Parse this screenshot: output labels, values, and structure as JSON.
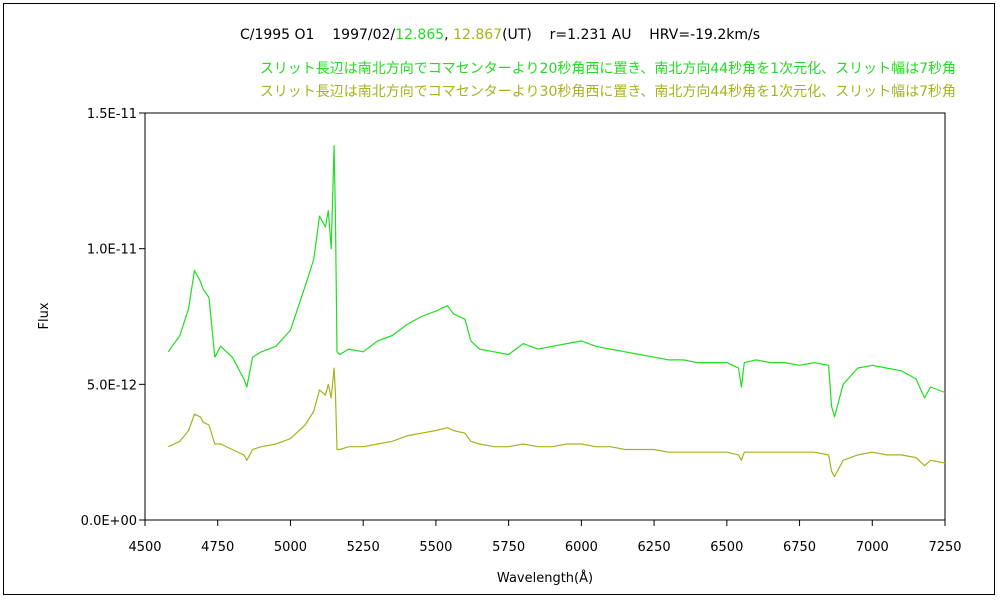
{
  "title": {
    "object": "C/1995 O1",
    "date_prefix": "1997/02/",
    "time1": "12.865",
    "sep": ", ",
    "time2": "12.867",
    "ut": "(UT)",
    "r": "r=1.231 AU",
    "hrv": "HRV=-19.2km/s"
  },
  "chart_data": {
    "type": "line",
    "xlabel": "Wavelength(Å)",
    "ylabel": "Flux",
    "xlim": [
      4500,
      7250
    ],
    "ylim": [
      0,
      1.5e-11
    ],
    "xticks": [
      4500,
      4750,
      5000,
      5250,
      5500,
      5750,
      6000,
      6250,
      6500,
      6750,
      7000,
      7250
    ],
    "yticks": [
      0,
      5e-12,
      1e-11,
      1.5e-11
    ],
    "ytick_labels": [
      "0.0E+00",
      "5.0E-12",
      "1.0E-11",
      "1.5E-11"
    ],
    "grid": false,
    "series": [
      {
        "name": "スリット長辺は南北方向でコマセンターより20秒角西に置き、南北方向44秒角を1次元化、スリット幅は7秒角",
        "color": "#22dd22",
        "x": [
          4580,
          4620,
          4650,
          4670,
          4690,
          4700,
          4720,
          4740,
          4760,
          4800,
          4840,
          4850,
          4870,
          4900,
          4950,
          5000,
          5050,
          5080,
          5100,
          5120,
          5130,
          5140,
          5150,
          5155,
          5160,
          5170,
          5200,
          5250,
          5300,
          5350,
          5400,
          5450,
          5500,
          5540,
          5560,
          5600,
          5620,
          5650,
          5700,
          5750,
          5800,
          5850,
          5900,
          5950,
          6000,
          6050,
          6100,
          6150,
          6200,
          6250,
          6300,
          6350,
          6400,
          6450,
          6500,
          6540,
          6550,
          6560,
          6600,
          6650,
          6700,
          6750,
          6800,
          6850,
          6860,
          6870,
          6900,
          6950,
          7000,
          7050,
          7100,
          7150,
          7180,
          7200,
          7250
        ],
        "y": [
          6.2e-12,
          6.8e-12,
          7.8e-12,
          9.2e-12,
          8.8e-12,
          8.5e-12,
          8.2e-12,
          6e-12,
          6.4e-12,
          6e-12,
          5.2e-12,
          4.9e-12,
          6e-12,
          6.2e-12,
          6.4e-12,
          7e-12,
          8.6e-12,
          9.6e-12,
          1.12e-11,
          1.08e-11,
          1.14e-11,
          1e-11,
          1.38e-11,
          1.1e-11,
          6.2e-12,
          6.1e-12,
          6.3e-12,
          6.2e-12,
          6.6e-12,
          6.8e-12,
          7.2e-12,
          7.5e-12,
          7.7e-12,
          7.9e-12,
          7.6e-12,
          7.4e-12,
          6.6e-12,
          6.3e-12,
          6.2e-12,
          6.1e-12,
          6.5e-12,
          6.3e-12,
          6.4e-12,
          6.5e-12,
          6.6e-12,
          6.4e-12,
          6.3e-12,
          6.2e-12,
          6.1e-12,
          6e-12,
          5.9e-12,
          5.9e-12,
          5.8e-12,
          5.8e-12,
          5.8e-12,
          5.6e-12,
          4.9e-12,
          5.8e-12,
          5.9e-12,
          5.8e-12,
          5.8e-12,
          5.7e-12,
          5.8e-12,
          5.7e-12,
          4.2e-12,
          3.8e-12,
          5e-12,
          5.6e-12,
          5.7e-12,
          5.6e-12,
          5.5e-12,
          5.2e-12,
          4.5e-12,
          4.9e-12,
          4.7e-12
        ]
      },
      {
        "name": "スリット長辺は南北方向でコマセンターより30秒角西に置き、南北方向44秒角を1次元化、スリット幅は7秒角",
        "color": "#a6b31b",
        "x": [
          4580,
          4620,
          4650,
          4670,
          4690,
          4700,
          4720,
          4740,
          4760,
          4800,
          4840,
          4850,
          4870,
          4900,
          4950,
          5000,
          5050,
          5080,
          5100,
          5120,
          5130,
          5140,
          5150,
          5155,
          5160,
          5170,
          5200,
          5250,
          5300,
          5350,
          5400,
          5450,
          5500,
          5540,
          5560,
          5600,
          5620,
          5650,
          5700,
          5750,
          5800,
          5850,
          5900,
          5950,
          6000,
          6050,
          6100,
          6150,
          6200,
          6250,
          6300,
          6350,
          6400,
          6450,
          6500,
          6540,
          6550,
          6560,
          6600,
          6650,
          6700,
          6750,
          6800,
          6850,
          6860,
          6870,
          6900,
          6950,
          7000,
          7050,
          7100,
          7150,
          7180,
          7200,
          7250
        ],
        "y": [
          2.7e-12,
          2.9e-12,
          3.3e-12,
          3.9e-12,
          3.8e-12,
          3.6e-12,
          3.5e-12,
          2.8e-12,
          2.8e-12,
          2.6e-12,
          2.4e-12,
          2.2e-12,
          2.6e-12,
          2.7e-12,
          2.8e-12,
          3e-12,
          3.5e-12,
          4e-12,
          4.8e-12,
          4.6e-12,
          5e-12,
          4.5e-12,
          5.6e-12,
          4.6e-12,
          2.6e-12,
          2.6e-12,
          2.7e-12,
          2.7e-12,
          2.8e-12,
          2.9e-12,
          3.1e-12,
          3.2e-12,
          3.3e-12,
          3.4e-12,
          3.3e-12,
          3.2e-12,
          2.9e-12,
          2.8e-12,
          2.7e-12,
          2.7e-12,
          2.8e-12,
          2.7e-12,
          2.7e-12,
          2.8e-12,
          2.8e-12,
          2.7e-12,
          2.7e-12,
          2.6e-12,
          2.6e-12,
          2.6e-12,
          2.5e-12,
          2.5e-12,
          2.5e-12,
          2.5e-12,
          2.5e-12,
          2.4e-12,
          2.2e-12,
          2.5e-12,
          2.5e-12,
          2.5e-12,
          2.5e-12,
          2.5e-12,
          2.5e-12,
          2.4e-12,
          1.8e-12,
          1.6e-12,
          2.2e-12,
          2.4e-12,
          2.5e-12,
          2.4e-12,
          2.4e-12,
          2.3e-12,
          2e-12,
          2.2e-12,
          2.1e-12
        ]
      }
    ]
  }
}
